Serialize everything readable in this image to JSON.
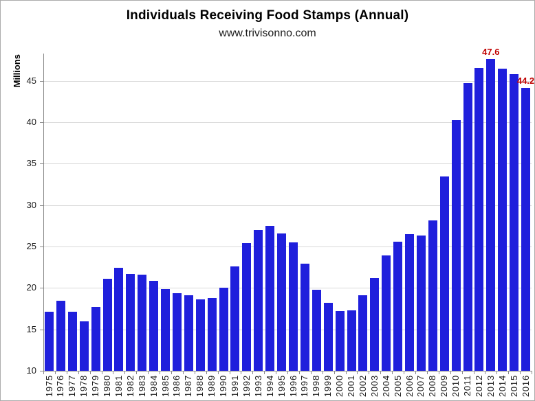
{
  "page": {
    "title": "Individuals Receiving Food Stamps (Annual)",
    "subtitle": "www.trivisonno.com"
  },
  "chart_data": {
    "type": "bar",
    "title": "Individuals Receiving Food Stamps (Annual)",
    "subtitle": "www.trivisonno.com",
    "xlabel": "",
    "ylabel": "Millions",
    "ylim": [
      10,
      48.3
    ],
    "yticks": [
      10,
      15,
      20,
      25,
      30,
      35,
      40,
      45
    ],
    "grid": true,
    "legend": false,
    "bar_color": "#1f1fdc",
    "annotation_color": "#c00000",
    "gridline_color": "#d9d9d9",
    "axis_color": "#898989",
    "categories": [
      "1975",
      "1976",
      "1977",
      "1978",
      "1979",
      "1980",
      "1981",
      "1982",
      "1983",
      "1984",
      "1985",
      "1986",
      "1987",
      "1988",
      "1989",
      "1990",
      "1991",
      "1992",
      "1993",
      "1994",
      "1995",
      "1996",
      "1997",
      "1998",
      "1999",
      "2000",
      "2001",
      "2002",
      "2003",
      "2004",
      "2005",
      "2006",
      "2007",
      "2008",
      "2009",
      "2010",
      "2011",
      "2012",
      "2013",
      "2014",
      "2015",
      "2016"
    ],
    "values": [
      17.1,
      18.5,
      17.1,
      16.0,
      17.7,
      21.1,
      22.4,
      21.7,
      21.6,
      20.9,
      19.9,
      19.4,
      19.1,
      18.6,
      18.8,
      20.0,
      22.6,
      25.4,
      27.0,
      27.5,
      26.6,
      25.5,
      22.9,
      19.8,
      18.2,
      17.2,
      17.3,
      19.1,
      21.2,
      23.9,
      25.6,
      26.5,
      26.3,
      28.2,
      33.5,
      40.3,
      44.7,
      46.6,
      47.6,
      46.5,
      45.8,
      44.2
    ],
    "annotations": [
      {
        "category": "2013",
        "text": "47.6"
      },
      {
        "category": "2016",
        "text": "44.2"
      }
    ]
  }
}
